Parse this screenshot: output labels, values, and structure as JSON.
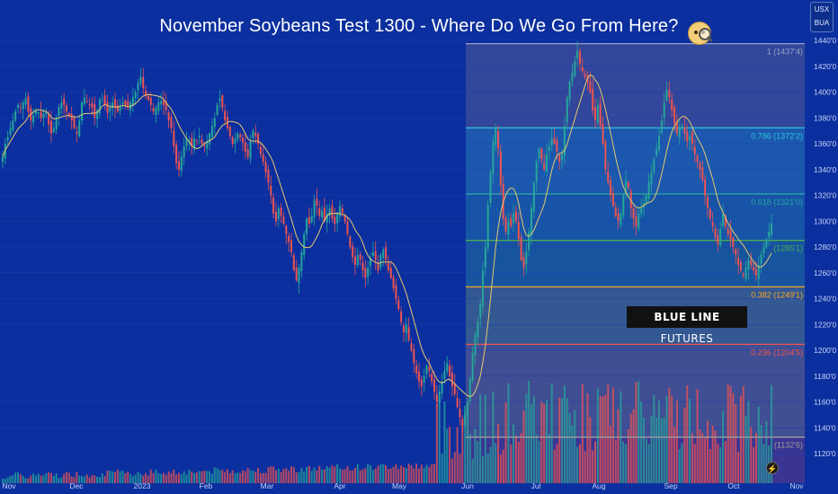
{
  "title": "November Soybeans Test 1300 - Where Do We Go From Here?",
  "currency_badge": {
    "line1": "USX",
    "line2": "BUA"
  },
  "brand": {
    "bold": "BLUE LINE",
    "regular": " FUTURES"
  },
  "icons": {
    "emoji": "thinking-face-magnifier-icon",
    "lightning": "lightning-icon"
  },
  "colors": {
    "background": "#0b2f9e",
    "up": "#26a69a",
    "down": "#ef5350",
    "ma": "#e6c86e"
  },
  "chart_data": {
    "type": "candlestick",
    "ylim": [
      1110,
      1450
    ],
    "y_ticks": [
      "1120'0",
      "1140'0",
      "1160'0",
      "1180'0",
      "1200'0",
      "1220'0",
      "1240'0",
      "1260'0",
      "1280'0",
      "1300'0",
      "1320'0",
      "1340'0",
      "1360'0",
      "1380'0",
      "1400'0",
      "1420'0",
      "1440'0"
    ],
    "x_ticks": [
      "Nov",
      "Dec",
      "2023",
      "Feb",
      "Mar",
      "Apr",
      "May",
      "Jun",
      "Jul",
      "Aug",
      "Sep",
      "Oct",
      "Nov"
    ],
    "fib_levels": [
      {
        "ratio": "1",
        "label": "1 (1437'4)",
        "price": 1437.5,
        "color": "#9aa3c7"
      },
      {
        "ratio": "0.786",
        "label": "0.786 (1372'2)",
        "price": 1372.25,
        "color": "#2bc4d8"
      },
      {
        "ratio": "0.618",
        "label": "0.618 (1321'0)",
        "price": 1321.0,
        "color": "#2aa6a0"
      },
      {
        "ratio": "0.5",
        "label": "(1285'1)",
        "price": 1285.125,
        "color": "#4caf50"
      },
      {
        "ratio": "0.382",
        "label": "0.382 (1249'1)",
        "price": 1249.125,
        "color": "#f5a623"
      },
      {
        "ratio": "0.236",
        "label": "0.236 (1204'5)",
        "price": 1204.625,
        "color": "#ef5350"
      },
      {
        "ratio": "0",
        "label": "(1132'6)",
        "price": 1132.75,
        "color": "#9e9e9e"
      }
    ],
    "closes": [
      1350,
      1360,
      1365,
      1372,
      1378,
      1385,
      1390,
      1388,
      1392,
      1395,
      1385,
      1378,
      1382,
      1386,
      1384,
      1380,
      1383,
      1385,
      1375,
      1368,
      1372,
      1380,
      1388,
      1392,
      1390,
      1385,
      1382,
      1378,
      1372,
      1368,
      1378,
      1392,
      1396,
      1393,
      1390,
      1388,
      1380,
      1386,
      1394,
      1395,
      1390,
      1384,
      1388,
      1392,
      1388,
      1385,
      1389,
      1392,
      1390,
      1388,
      1392,
      1396,
      1400,
      1407,
      1412,
      1403,
      1397,
      1394,
      1390,
      1385,
      1388,
      1392,
      1393,
      1390,
      1386,
      1378,
      1372,
      1358,
      1345,
      1340,
      1350,
      1358,
      1364,
      1362,
      1358,
      1364,
      1362,
      1366,
      1360,
      1358,
      1362,
      1368,
      1374,
      1380,
      1390,
      1395,
      1388,
      1378,
      1372,
      1366,
      1360,
      1364,
      1368,
      1365,
      1361,
      1354,
      1350,
      1362,
      1370,
      1366,
      1360,
      1352,
      1346,
      1338,
      1330,
      1320,
      1306,
      1300,
      1310,
      1304,
      1298,
      1290,
      1284,
      1276,
      1262,
      1254,
      1264,
      1276,
      1290,
      1302,
      1298,
      1304,
      1316,
      1312,
      1304,
      1308,
      1300,
      1306,
      1310,
      1302,
      1298,
      1306,
      1312,
      1306,
      1300,
      1290,
      1280,
      1272,
      1266,
      1274,
      1270,
      1262,
      1256,
      1264,
      1272,
      1276,
      1270,
      1262,
      1274,
      1278,
      1270,
      1262,
      1256,
      1248,
      1240,
      1232,
      1222,
      1214,
      1220,
      1208,
      1200,
      1190,
      1182,
      1176,
      1172,
      1180,
      1188,
      1184,
      1176,
      1168,
      1160,
      1168,
      1176,
      1184,
      1190,
      1180,
      1172,
      1166,
      1156,
      1148,
      1142,
      1150,
      1160,
      1178,
      1198,
      1212,
      1222,
      1236,
      1262,
      1280,
      1312,
      1338,
      1362,
      1372,
      1356,
      1328,
      1302,
      1292,
      1300,
      1296,
      1306,
      1300,
      1286,
      1270,
      1264,
      1276,
      1292,
      1310,
      1330,
      1346,
      1356,
      1348,
      1340,
      1352,
      1358,
      1364,
      1360,
      1354,
      1346,
      1352,
      1374,
      1396,
      1408,
      1415,
      1424,
      1432,
      1422,
      1416,
      1412,
      1408,
      1400,
      1386,
      1378,
      1390,
      1374,
      1360,
      1340,
      1330,
      1320,
      1312,
      1304,
      1300,
      1306,
      1320,
      1332,
      1326,
      1310,
      1302,
      1296,
      1306,
      1310,
      1314,
      1320,
      1330,
      1338,
      1348,
      1356,
      1366,
      1378,
      1392,
      1402,
      1396,
      1386,
      1376,
      1368,
      1372,
      1374,
      1368,
      1362,
      1366,
      1360,
      1352,
      1346,
      1340,
      1332,
      1320,
      1310,
      1302,
      1296,
      1288,
      1282,
      1294,
      1306,
      1296,
      1290,
      1286,
      1280,
      1274,
      1266,
      1262,
      1258,
      1264,
      1270,
      1266,
      1262,
      1258,
      1266,
      1274,
      1280,
      1286,
      1292,
      1298
    ]
  }
}
